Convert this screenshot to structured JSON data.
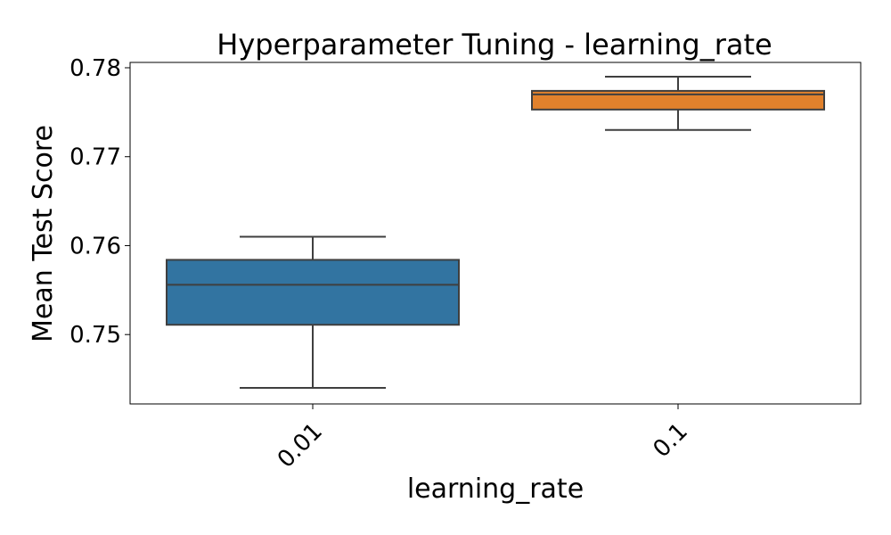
{
  "chart_data": {
    "type": "box",
    "title": "Hyperparameter Tuning - learning_rate",
    "xlabel": "learning_rate",
    "ylabel": "Mean Test Score",
    "ylim": [
      0.7422,
      0.7806
    ],
    "yticks": [
      0.75,
      0.76,
      0.77,
      0.78
    ],
    "ytick_labels": [
      "0.75",
      "0.76",
      "0.77",
      "0.78"
    ],
    "categories": [
      "0.01",
      "0.1"
    ],
    "boxes": [
      {
        "category": "0.01",
        "whisker_low": 0.744,
        "q1": 0.7511,
        "median": 0.7556,
        "q3": 0.7584,
        "whisker_high": 0.761,
        "color": "#3274a1"
      },
      {
        "category": "0.1",
        "whisker_low": 0.773,
        "q1": 0.7753,
        "median": 0.777,
        "q3": 0.7774,
        "whisker_high": 0.779,
        "color": "#e1812c"
      }
    ],
    "grid": false,
    "legend": "none"
  }
}
